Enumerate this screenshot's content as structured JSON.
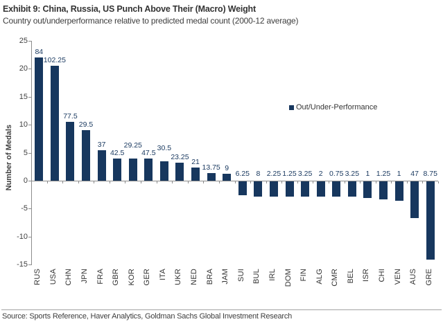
{
  "header": {
    "title": "Exhibit 9: China, Russia, US Punch Above Their (Macro) Weight",
    "subtitle": "Country out/underperformance relative to predicted medal count (2000-12 average)"
  },
  "chart_data": {
    "type": "bar",
    "title": "Exhibit 9: China, Russia, US Punch Above Their (Macro) Weight",
    "subtitle": "Country out/underperformance relative to predicted medal count (2000-12 average)",
    "categories": [
      "RUS",
      "USA",
      "CHN",
      "JPN",
      "FRA",
      "GBR",
      "KOR",
      "GER",
      "ITA",
      "UKR",
      "NED",
      "BRA",
      "JAM",
      "SUI",
      "BUL",
      "IRL",
      "DOM",
      "FIN",
      "ALG",
      "CMR",
      "BEL",
      "ISR",
      "CHI",
      "VEN",
      "AUS",
      "GRE"
    ],
    "series": [
      {
        "name": "Out/Under-Performance",
        "values": [
          22,
          20.5,
          10.5,
          9,
          5.5,
          3.9,
          3.9,
          4,
          3.5,
          3.25,
          2.4,
          1.4,
          1.2,
          -2.5,
          -2.75,
          -2.75,
          -2.75,
          -2.75,
          -2.75,
          -2.75,
          -2.75,
          -3,
          -3.25,
          -3.5,
          -6.5,
          -14
        ],
        "data_labels": [
          "84",
          "102.25",
          "77.5",
          "29.5",
          "37",
          "42.5",
          "29.25",
          "47.5",
          "30.5",
          "23.25",
          "21",
          "13.75",
          "9",
          "6.25",
          "8",
          "2.25",
          "1.25",
          "3.25",
          "2",
          "0.75",
          "3.25",
          "1",
          "1.25",
          "1",
          "47",
          "8.75"
        ]
      }
    ],
    "xlabel": "",
    "ylabel": "Number of Medals",
    "ylim": [
      -15,
      25
    ],
    "yticks": [
      25,
      20,
      15,
      10,
      5,
      0,
      -5,
      -10,
      -15
    ],
    "grid": false,
    "legend_position": "right-middle",
    "bar_color": "#17375E",
    "label_color": "#17375E"
  },
  "footer": {
    "source": "Source: Sports Reference, Haver Analytics, Goldman Sachs Global Investment Research"
  }
}
